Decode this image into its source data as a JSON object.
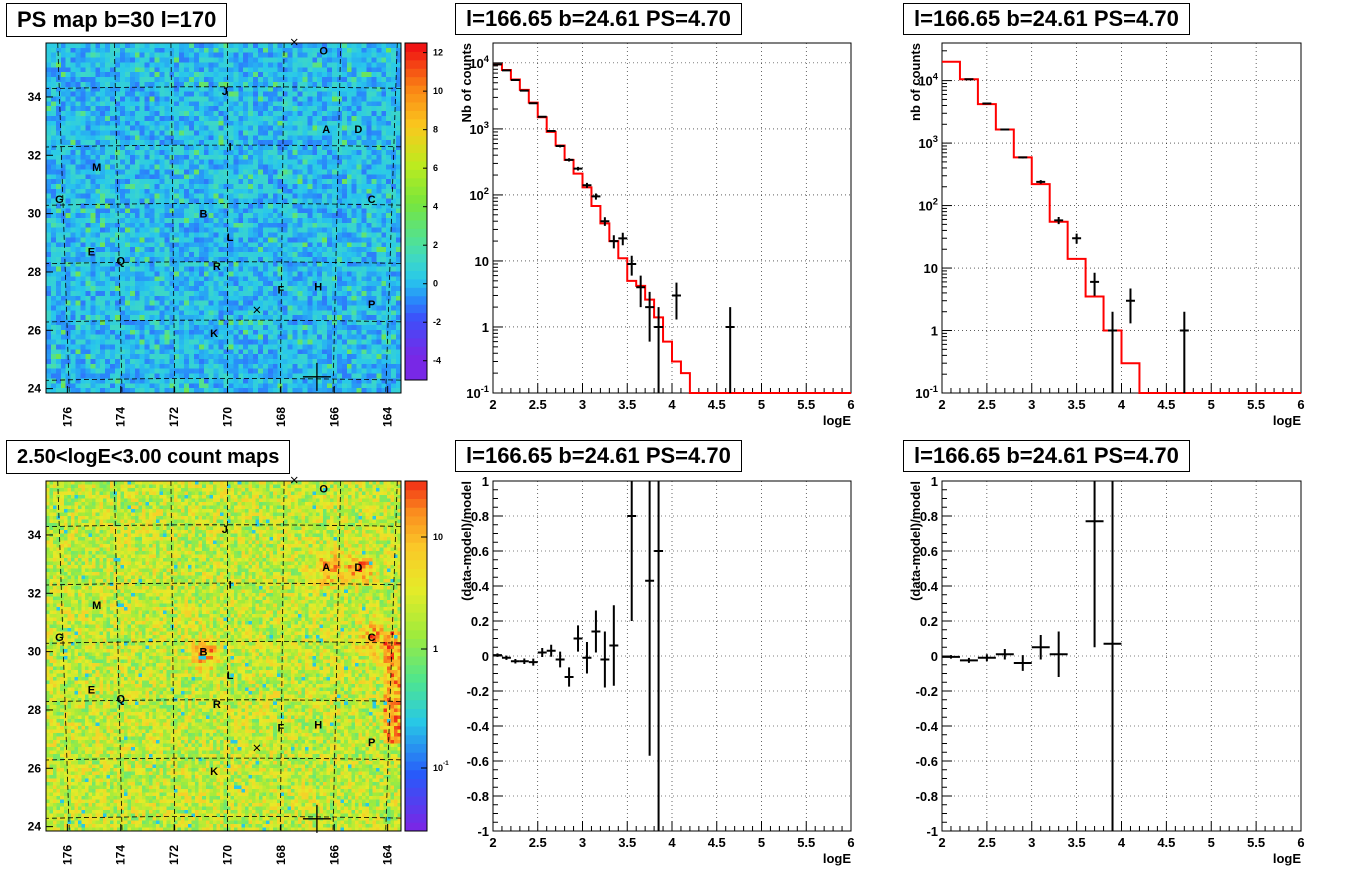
{
  "panels": {
    "ps_map_title": "PS map b=30 l=170",
    "count_map_title": "2.50<logE<3.00 count maps",
    "spec_top_mid_title": "l=166.65 b=24.61 PS=4.70",
    "spec_top_right_title": "l=166.65 b=24.61 PS=4.70",
    "res_bot_mid_title": "l=166.65 b=24.61 PS=4.70",
    "res_bot_right_title": "l=166.65 b=24.61 PS=4.70"
  },
  "maps": {
    "x_ticks": [
      "176",
      "174",
      "172",
      "170",
      "168",
      "166",
      "164"
    ],
    "y_ticks": [
      "24",
      "26",
      "28",
      "30",
      "32",
      "34"
    ],
    "ps_colorbar_ticks": [
      "12",
      "10",
      "8",
      "6",
      "4",
      "2",
      "0",
      "-2",
      "-4"
    ],
    "count_colorbar_ticks": [
      "10",
      "1",
      "10-1"
    ],
    "sources": [
      {
        "label": "O",
        "l": 166.4,
        "b": 35.6
      },
      {
        "label": "J",
        "l": 170.1,
        "b": 34.2
      },
      {
        "label": "A",
        "l": 166.3,
        "b": 32.9
      },
      {
        "label": "D",
        "l": 165.1,
        "b": 32.9
      },
      {
        "label": "I",
        "l": 169.9,
        "b": 32.3
      },
      {
        "label": "M",
        "l": 174.9,
        "b": 31.6
      },
      {
        "label": "G",
        "l": 176.3,
        "b": 30.5
      },
      {
        "label": "C",
        "l": 164.6,
        "b": 30.5
      },
      {
        "label": "B",
        "l": 170.9,
        "b": 30.0
      },
      {
        "label": "L",
        "l": 169.9,
        "b": 29.2
      },
      {
        "label": "E",
        "l": 175.1,
        "b": 28.7
      },
      {
        "label": "Q",
        "l": 174.0,
        "b": 28.4
      },
      {
        "label": "R",
        "l": 170.4,
        "b": 28.2
      },
      {
        "label": "F",
        "l": 168.0,
        "b": 27.4
      },
      {
        "label": "H",
        "l": 166.6,
        "b": 27.5
      },
      {
        "label": "P",
        "l": 164.6,
        "b": 26.9
      },
      {
        "label": "K",
        "l": 170.5,
        "b": 25.9
      }
    ]
  },
  "chart_data": [
    {
      "type": "line",
      "title": "l=166.65 b=24.61 PS=4.70",
      "xlabel": "logE",
      "ylabel": "Nb of counts",
      "xlim": [
        2,
        6
      ],
      "ylim": [
        0.1,
        20000
      ],
      "y_log": true,
      "grid": true,
      "x_ticks": [
        "2",
        "2.5",
        "3",
        "3.5",
        "4",
        "4.5",
        "5",
        "5.5",
        "6"
      ],
      "y_ticks": [
        "10-1",
        "1",
        "10",
        "102",
        "103",
        "104"
      ],
      "model_colors": {
        "model": "#ff0000",
        "data": "#000000"
      },
      "model_edges": [
        2.0,
        2.1,
        2.2,
        2.3,
        2.4,
        2.5,
        2.6,
        2.7,
        2.8,
        2.9,
        3.0,
        3.1,
        3.2,
        3.3,
        3.4,
        3.5,
        3.6,
        3.7,
        3.8,
        3.9,
        4.0,
        4.1,
        4.2,
        4.3,
        6.0
      ],
      "model_values": [
        9500,
        7800,
        5600,
        3900,
        2500,
        1500,
        900,
        560,
        340,
        210,
        130,
        68,
        37,
        20,
        11,
        5,
        4.2,
        2.6,
        1.4,
        0.6,
        0.3,
        0.2,
        0.1,
        0.1
      ],
      "data_points": [
        {
          "x": 2.05,
          "y": 9500,
          "yerr": 100
        },
        {
          "x": 2.15,
          "y": 7700,
          "yerr": 90
        },
        {
          "x": 2.25,
          "y": 5500,
          "yerr": 75
        },
        {
          "x": 2.35,
          "y": 3800,
          "yerr": 62
        },
        {
          "x": 2.45,
          "y": 2450,
          "yerr": 50
        },
        {
          "x": 2.55,
          "y": 1530,
          "yerr": 40
        },
        {
          "x": 2.65,
          "y": 930,
          "yerr": 31
        },
        {
          "x": 2.75,
          "y": 550,
          "yerr": 24
        },
        {
          "x": 2.85,
          "y": 340,
          "yerr": 19
        },
        {
          "x": 2.95,
          "y": 250,
          "yerr": 16
        },
        {
          "x": 3.05,
          "y": 140,
          "yerr": 12
        },
        {
          "x": 3.15,
          "y": 95,
          "yerr": 10
        },
        {
          "x": 3.25,
          "y": 40,
          "yerr": 6
        },
        {
          "x": 3.35,
          "y": 20,
          "yerr": 4.5
        },
        {
          "x": 3.45,
          "y": 22,
          "yerr": 4.7
        },
        {
          "x": 3.55,
          "y": 9,
          "yerr": 3
        },
        {
          "x": 3.65,
          "y": 4,
          "yerr": 2
        },
        {
          "x": 3.75,
          "y": 2,
          "yerr": 1.4
        },
        {
          "x": 3.85,
          "y": 1,
          "yerr": 1
        },
        {
          "x": 4.05,
          "y": 3,
          "yerr": 1.7
        },
        {
          "x": 4.65,
          "y": 1,
          "yerr": 1
        }
      ]
    },
    {
      "type": "line",
      "title": "l=166.65 b=24.61 PS=4.70",
      "xlabel": "logE",
      "ylabel": "nb of counts",
      "xlim": [
        2,
        6
      ],
      "ylim": [
        0.1,
        40000
      ],
      "y_log": true,
      "grid": true,
      "x_ticks": [
        "2",
        "2.5",
        "3",
        "3.5",
        "4",
        "4.5",
        "5",
        "5.5",
        "6"
      ],
      "y_ticks": [
        "10-1",
        "1",
        "10",
        "102",
        "103",
        "104"
      ],
      "model_edges": [
        2.0,
        2.2,
        2.4,
        2.6,
        2.8,
        3.0,
        3.2,
        3.4,
        3.6,
        3.8,
        4.0,
        4.2,
        6.0
      ],
      "model_values": [
        20000,
        10500,
        4200,
        1650,
        590,
        220,
        55,
        14,
        3.5,
        1.0,
        0.3,
        0.1
      ],
      "data_points": [
        {
          "x": 2.3,
          "y": 10500,
          "yerr": 100
        },
        {
          "x": 2.5,
          "y": 4300,
          "yerr": 66
        },
        {
          "x": 2.7,
          "y": 1650,
          "yerr": 41
        },
        {
          "x": 2.9,
          "y": 590,
          "yerr": 24
        },
        {
          "x": 3.1,
          "y": 240,
          "yerr": 15
        },
        {
          "x": 3.3,
          "y": 58,
          "yerr": 7.6
        },
        {
          "x": 3.5,
          "y": 30,
          "yerr": 5.5
        },
        {
          "x": 3.7,
          "y": 6,
          "yerr": 2.4
        },
        {
          "x": 3.9,
          "y": 1,
          "yerr": 1
        },
        {
          "x": 4.1,
          "y": 3,
          "yerr": 1.7
        },
        {
          "x": 4.7,
          "y": 1,
          "yerr": 1
        }
      ]
    },
    {
      "type": "scatter",
      "title": "l=166.65 b=24.61 PS=4.70",
      "xlabel": "logE",
      "ylabel": "(data-model)/model",
      "xlim": [
        2,
        6
      ],
      "ylim": [
        -1,
        1
      ],
      "grid": true,
      "x_ticks": [
        "2",
        "2.5",
        "3",
        "3.5",
        "4",
        "4.5",
        "5",
        "5.5",
        "6"
      ],
      "y_ticks": [
        "-1",
        "-0.8",
        "-0.6",
        "-0.4",
        "-0.2",
        "0",
        "0.2",
        "0.4",
        "0.6",
        "0.8",
        "1"
      ],
      "points": [
        {
          "x": 2.05,
          "y": 0.005,
          "xerr": 0.05,
          "yerr": 0.01
        },
        {
          "x": 2.15,
          "y": -0.01,
          "xerr": 0.05,
          "yerr": 0.012
        },
        {
          "x": 2.25,
          "y": -0.03,
          "xerr": 0.05,
          "yerr": 0.013
        },
        {
          "x": 2.35,
          "y": -0.03,
          "xerr": 0.05,
          "yerr": 0.016
        },
        {
          "x": 2.45,
          "y": -0.035,
          "xerr": 0.05,
          "yerr": 0.02
        },
        {
          "x": 2.55,
          "y": 0.02,
          "xerr": 0.05,
          "yerr": 0.026
        },
        {
          "x": 2.65,
          "y": 0.03,
          "xerr": 0.05,
          "yerr": 0.034
        },
        {
          "x": 2.75,
          "y": -0.02,
          "xerr": 0.05,
          "yerr": 0.045
        },
        {
          "x": 2.85,
          "y": -0.12,
          "xerr": 0.05,
          "yerr": 0.055
        },
        {
          "x": 2.95,
          "y": 0.1,
          "xerr": 0.05,
          "yerr": 0.075
        },
        {
          "x": 3.05,
          "y": -0.01,
          "xerr": 0.05,
          "yerr": 0.09
        },
        {
          "x": 3.15,
          "y": 0.14,
          "xerr": 0.05,
          "yerr": 0.12
        },
        {
          "x": 3.25,
          "y": -0.02,
          "xerr": 0.05,
          "yerr": 0.16
        },
        {
          "x": 3.35,
          "y": 0.06,
          "xerr": 0.05,
          "yerr": 0.23
        },
        {
          "x": 3.55,
          "y": 0.8,
          "xerr": 0.05,
          "yerr": 0.6
        },
        {
          "x": 3.75,
          "y": 0.43,
          "xerr": 0.05,
          "yerr": 1.0
        },
        {
          "x": 3.85,
          "y": 0.6,
          "xerr": 0.05,
          "yerr": 1.6
        }
      ]
    },
    {
      "type": "scatter",
      "title": "l=166.65 b=24.61 PS=4.70",
      "xlabel": "logE",
      "ylabel": "(data-model)/model",
      "xlim": [
        2,
        6
      ],
      "ylim": [
        -1,
        1
      ],
      "grid": true,
      "x_ticks": [
        "2",
        "2.5",
        "3",
        "3.5",
        "4",
        "4.5",
        "5",
        "5.5",
        "6"
      ],
      "y_ticks": [
        "-1",
        "-0.8",
        "-0.6",
        "-0.4",
        "-0.2",
        "0",
        "0.2",
        "0.4",
        "0.6",
        "0.8",
        "1"
      ],
      "points": [
        {
          "x": 2.1,
          "y": -0.005,
          "xerr": 0.1,
          "yerr": 0.01
        },
        {
          "x": 2.3,
          "y": -0.025,
          "xerr": 0.1,
          "yerr": 0.014
        },
        {
          "x": 2.5,
          "y": -0.01,
          "xerr": 0.1,
          "yerr": 0.02
        },
        {
          "x": 2.7,
          "y": 0.01,
          "xerr": 0.1,
          "yerr": 0.03
        },
        {
          "x": 2.9,
          "y": -0.04,
          "xerr": 0.1,
          "yerr": 0.045
        },
        {
          "x": 3.1,
          "y": 0.05,
          "xerr": 0.1,
          "yerr": 0.07
        },
        {
          "x": 3.3,
          "y": 0.01,
          "xerr": 0.1,
          "yerr": 0.13
        },
        {
          "x": 3.7,
          "y": 0.77,
          "xerr": 0.1,
          "yerr": 0.72
        },
        {
          "x": 3.9,
          "y": 0.07,
          "xerr": 0.1,
          "yerr": 1.4
        }
      ]
    }
  ]
}
